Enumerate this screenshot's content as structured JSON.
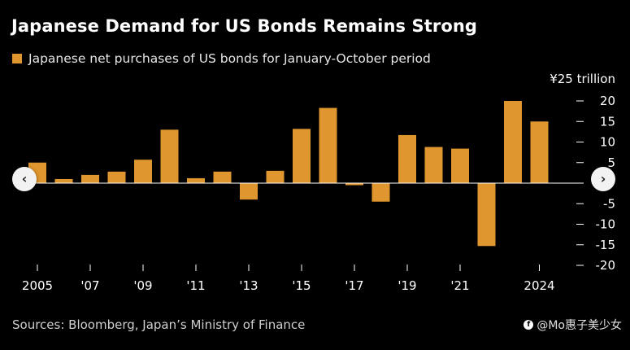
{
  "title": "Japanese Demand for US Bonds Remains Strong",
  "legend_label": "Japanese net purchases of US bonds for January-October period",
  "source": "Sources: Bloomberg, Japan’s Ministry of Finance",
  "watermark": "@Mo惠子美少女",
  "colors": {
    "bar": "#E0962E",
    "background": "#000000",
    "axis": "#ffffff",
    "text": "#ffffff"
  },
  "nav": {
    "prev_icon": "chevron-left-icon",
    "next_icon": "chevron-right-icon",
    "prev_glyph": "‹",
    "next_glyph": "›"
  },
  "chart_data": {
    "type": "bar",
    "title": "Japanese Demand for US Bonds Remains Strong",
    "unit_label": "¥25 trillion",
    "legend": "Japanese net purchases of US bonds for January-October period",
    "categories": [
      "2005",
      "2006",
      "2007",
      "2008",
      "2009",
      "2010",
      "2011",
      "2012",
      "2013",
      "2014",
      "2015",
      "2016",
      "2017",
      "2018",
      "2019",
      "2020",
      "2021",
      "2022",
      "2023",
      "2024"
    ],
    "values": [
      5.0,
      1.0,
      2.0,
      2.8,
      5.7,
      13.0,
      1.2,
      2.8,
      -4.0,
      3.0,
      13.2,
      18.3,
      -0.5,
      -4.5,
      11.7,
      8.8,
      8.4,
      -15.3,
      20.0,
      15.0
    ],
    "x_tick_labels": [
      {
        "index": 0,
        "label": "2005"
      },
      {
        "index": 2,
        "label": "'07"
      },
      {
        "index": 4,
        "label": "'09"
      },
      {
        "index": 6,
        "label": "'11"
      },
      {
        "index": 8,
        "label": "'13"
      },
      {
        "index": 10,
        "label": "'15"
      },
      {
        "index": 12,
        "label": "'17"
      },
      {
        "index": 14,
        "label": "'19"
      },
      {
        "index": 16,
        "label": "'21"
      },
      {
        "index": 19,
        "label": "2024"
      }
    ],
    "y_ticks": [
      20,
      15,
      10,
      5,
      -5,
      -10,
      -15,
      -20
    ],
    "y_tick_labels": [
      "20",
      "15",
      "10",
      "5",
      "-5",
      "-10",
      "-15",
      "-20"
    ],
    "ylim": [
      -20,
      25
    ],
    "grid": false,
    "legend_position": "top-left"
  }
}
